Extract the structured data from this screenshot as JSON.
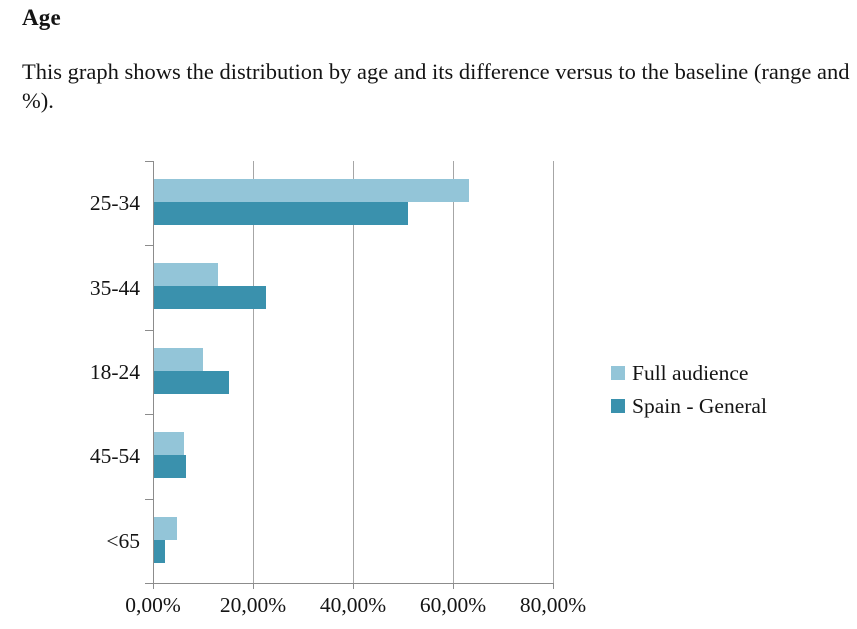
{
  "header": {
    "title": "Age",
    "description": "This graph shows the distribution by age and its difference versus to the baseline (range and %)."
  },
  "chart_data": {
    "type": "bar",
    "orientation": "horizontal",
    "title": "Age",
    "xlabel": "",
    "ylabel": "",
    "categories": [
      "25-34",
      "35-44",
      "18-24",
      "45-54",
      "<65"
    ],
    "series": [
      {
        "name": "Full audience",
        "color": "#93c5d8",
        "values": [
          63.0,
          12.7,
          9.8,
          6.0,
          4.6
        ]
      },
      {
        "name": "Spain - General",
        "color": "#3a91ad",
        "values": [
          50.8,
          22.3,
          15.0,
          6.3,
          2.1
        ]
      }
    ],
    "x_axis": {
      "min": 0,
      "max": 80,
      "tick_step": 20,
      "tick_labels": [
        "0,00%",
        "20,00%",
        "40,00%",
        "60,00%",
        "80,00%"
      ]
    },
    "grid": "vertical-only",
    "legend_position": "right-middle",
    "colors": {
      "gridline": "#a6a6a6",
      "axis": "#8c8c8c",
      "text": "#141414",
      "background": "#ffffff"
    }
  }
}
